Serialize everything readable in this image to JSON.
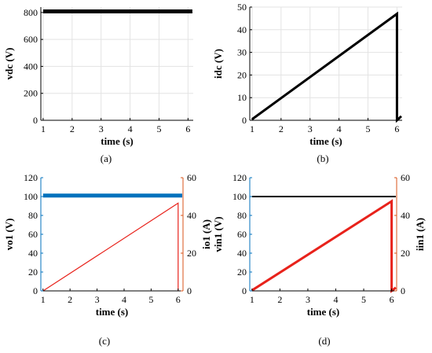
{
  "chart_data": [
    {
      "type": "line",
      "caption": "(a)",
      "xlabel": "time (s)",
      "ylabel": "vdc (V)",
      "xlim": [
        0.92,
        6.18
      ],
      "ylim": [
        0,
        840
      ],
      "x_ticks": [
        1,
        2,
        3,
        4,
        5,
        6
      ],
      "y_ticks": [
        0,
        200,
        400,
        600,
        800
      ],
      "grid": true,
      "series": [
        {
          "color": "#000000",
          "width": 5,
          "axis": "left",
          "x": [
            1,
            6.15
          ],
          "y": [
            808,
            808
          ]
        }
      ]
    },
    {
      "type": "line",
      "caption": "(b)",
      "xlabel": "time (s)",
      "ylabel": "idc (V)",
      "xlim": [
        0.92,
        6.18
      ],
      "ylim": [
        0,
        50
      ],
      "x_ticks": [
        1,
        2,
        3,
        4,
        5,
        6
      ],
      "y_ticks": [
        0,
        10,
        20,
        30,
        40,
        50
      ],
      "grid": true,
      "series": [
        {
          "color": "#000000",
          "width": 3,
          "axis": "left",
          "x": [
            1,
            6,
            6,
            6.02,
            6.15
          ],
          "y": [
            0.5,
            47,
            0,
            0.2,
            1.8
          ]
        }
      ]
    },
    {
      "type": "line",
      "caption": "(c)",
      "xlabel": "time (s)",
      "ylabel": "vo1 (V)",
      "ylabel_right": "io1 (A)",
      "xlim": [
        0.92,
        6.18
      ],
      "ylim": [
        0,
        120
      ],
      "ylim_right": [
        0,
        60
      ],
      "x_ticks": [
        1,
        2,
        3,
        4,
        5,
        6
      ],
      "y_ticks": [
        0,
        20,
        40,
        60,
        80,
        100,
        120
      ],
      "y_ticks_right": [
        0,
        20,
        40,
        60
      ],
      "left_color": "#0072BD",
      "right_color": "#D95319",
      "grid": false,
      "series": [
        {
          "color": "#0072BD",
          "width": 5,
          "axis": "left",
          "x": [
            1,
            6.15
          ],
          "y": [
            101,
            101
          ]
        },
        {
          "color": "#E8221B",
          "width": 1.2,
          "axis": "right",
          "x": [
            1,
            6,
            6
          ],
          "y": [
            0,
            46.5,
            0
          ]
        }
      ]
    },
    {
      "type": "line",
      "caption": "(d)",
      "xlabel": "time (s)",
      "ylabel": "vin1 (V)",
      "ylabel_right": "iin1 (A)",
      "xlim": [
        0.92,
        6.18
      ],
      "ylim": [
        0,
        120
      ],
      "ylim_right": [
        0,
        60
      ],
      "x_ticks": [
        1,
        2,
        3,
        4,
        5,
        6
      ],
      "y_ticks": [
        0,
        20,
        40,
        60,
        80,
        100,
        120
      ],
      "y_ticks_right": [
        0,
        20,
        40,
        60
      ],
      "left_color": "#0072BD",
      "right_color": "#D95319",
      "grid": false,
      "series": [
        {
          "color": "#000000",
          "width": 2,
          "axis": "left",
          "x": [
            1,
            6.15
          ],
          "y": [
            100,
            100
          ]
        },
        {
          "color": "#E8221B",
          "width": 3,
          "axis": "right",
          "x": [
            1,
            6,
            6,
            6.05,
            6.15
          ],
          "y": [
            0.3,
            47.5,
            0,
            0.5,
            1.8
          ]
        }
      ]
    }
  ]
}
